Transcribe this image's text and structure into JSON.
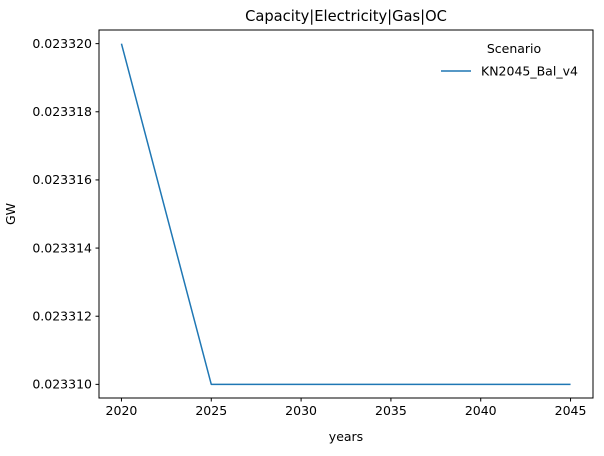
{
  "figure": {
    "background": "#ffffff"
  },
  "chart_data": {
    "type": "line",
    "title": "Capacity|Electricity|Gas|OC",
    "xlabel": "years",
    "ylabel": "GW",
    "x": [
      2020,
      2025,
      2030,
      2035,
      2040,
      2045
    ],
    "series": [
      {
        "name": "KN2045_Bal_v4",
        "color": "#1f77b4",
        "values": [
          0.02332,
          0.02331,
          0.02331,
          0.02331,
          0.02331,
          0.02331
        ]
      }
    ],
    "xticks": [
      "2020",
      "2025",
      "2030",
      "2035",
      "2040",
      "2045"
    ],
    "yticks": [
      "0.023310",
      "0.023312",
      "0.023314",
      "0.023316",
      "0.023318",
      "0.023320"
    ],
    "xlim": [
      2018.75,
      2046.25
    ],
    "ylim": [
      0.0233096,
      0.0233204
    ],
    "grid": false,
    "axis_color": "#000000",
    "text_color": "#000000",
    "legend": {
      "title": "Scenario",
      "position": "upper right",
      "frame": false,
      "entries": [
        {
          "label": "KN2045_Bal_v4",
          "color": "#1f77b4"
        }
      ]
    }
  }
}
